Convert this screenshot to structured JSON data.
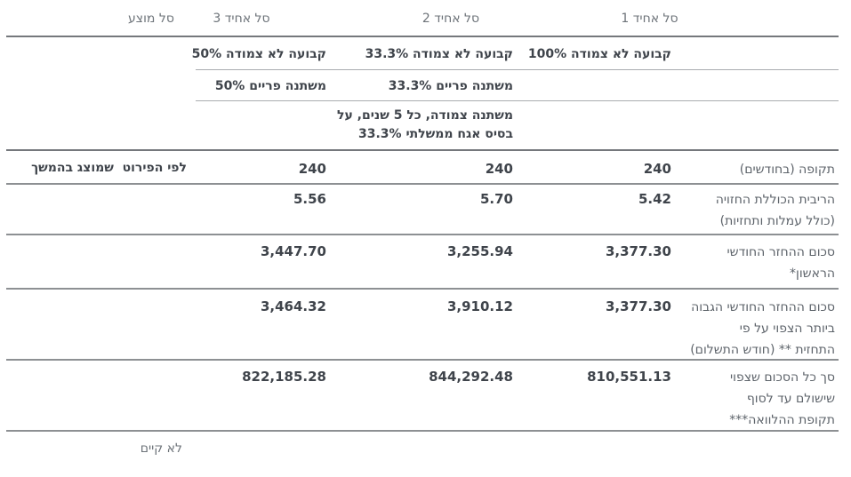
{
  "columns": {
    "basket1": "סל אחיד 1",
    "basket2": "סל אחיד 2",
    "basket3": "סל אחיד 3",
    "proposed": "סל מוצע"
  },
  "composition": {
    "row1": {
      "basket1": "קבועה לא צמודה 100%",
      "basket2": "קבועה לא צמודה 33.3%",
      "basket3": "קבועה לא צמודה 50%"
    },
    "row2": {
      "basket2": "משתנה פריים 33.3%",
      "basket3": "משתנה פריים 50%"
    },
    "row3": {
      "basket2": "משתנה צמודה, כל 5 שנים, על\nבסיס אגח ממשלתי 33.3%"
    }
  },
  "rows": {
    "period": {
      "label": "תקופה (בחודשים)",
      "basket1": "240",
      "basket2": "240",
      "basket3": "240",
      "proposed": "לפי הפירוט  שמוצג בהמשך"
    },
    "interest": {
      "label": "הריבית הכוללת החזויה\n(כולל עמלות ותחזיות)",
      "basket1": "5.42",
      "basket2": "5.70",
      "basket3": "5.56"
    },
    "first_payment": {
      "label": "סכום ההחזר החודשי\nהראשון*",
      "basket1": "3,377.30",
      "basket2": "3,255.94",
      "basket3": "3,447.70"
    },
    "highest_payment": {
      "label": "סכום ההחזר החודשי הגבוה\nביותר הצפוי על פי\nהתחזית ** (חודש התשלום)",
      "basket1": "3,377.30",
      "basket2": "3,910.12",
      "basket3": "3,464.32"
    },
    "total_amount": {
      "label": "סך כל הסכום שצפוי\nשישולם עד לסוף\nתקופת ההלוואה***",
      "basket1": "810,551.13",
      "basket2": "844,292.48",
      "basket3": "822,185.28"
    }
  },
  "footer": {
    "proposed": "לא קיים"
  },
  "colors": {
    "value_text": "#3f444b",
    "label_text": "#5d636a",
    "header_text": "#6d7379",
    "strong_line": "#75787c",
    "mid_line": "#8d9093",
    "light_line": "#a9acaf",
    "background": "#ffffff"
  }
}
